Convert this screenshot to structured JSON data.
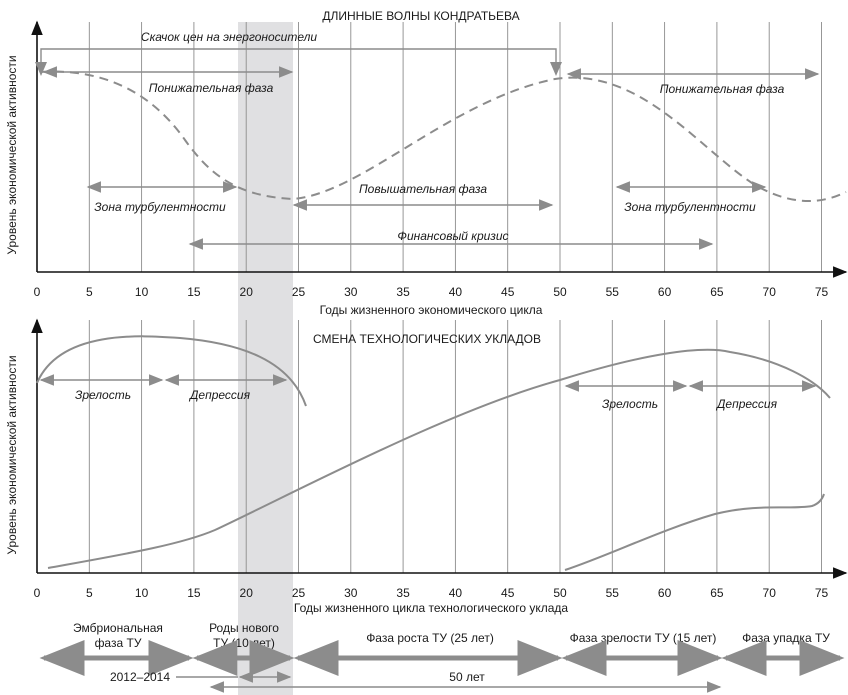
{
  "top_chart": {
    "title": "ДЛИННЫЕ ВОЛНЫ КОНДРАТЬЕВА",
    "ylabel": "Уровень экономической активности",
    "xlabel": "Годы жизненного экономического цикла",
    "ticks": [
      "0",
      "5",
      "10",
      "15",
      "20",
      "25",
      "30",
      "35",
      "40",
      "45",
      "50",
      "55",
      "60",
      "65",
      "70",
      "75"
    ],
    "labels": {
      "price_jump": "Скачок цен на энергоносители",
      "down_phase_1": "Понижательная фаза",
      "down_phase_2": "Понижательная фаза",
      "turbulence_1": "Зона турбулентности",
      "turbulence_2": "Зона турбулентности",
      "up_phase": "Повышательная фаза",
      "fin_crisis": "Финансовый кризис"
    }
  },
  "bottom_chart": {
    "title": "СМЕНА ТЕХНОЛОГИЧЕСКИХ УКЛАДОВ",
    "ylabel": "Уровень экономической активности",
    "xlabel": "Годы жизненного цикла технологического уклада",
    "ticks": [
      "0",
      "5",
      "10",
      "15",
      "20",
      "25",
      "30",
      "35",
      "40",
      "45",
      "50",
      "55",
      "60",
      "65",
      "70",
      "75"
    ],
    "labels": {
      "maturity_1": "Зрелость",
      "depression_1": "Депрессия",
      "maturity_2": "Зрелость",
      "depression_2": "Депрессия"
    }
  },
  "phases": {
    "embryo_1": "Эмбриональная",
    "embryo_2": "фаза ТУ",
    "birth_1": "Роды нового",
    "birth_2": "ТУ (10 лет)",
    "growth": "Фаза роста ТУ (25 лет)",
    "maturity": "Фаза зрелости ТУ (15 лет)",
    "decline": "Фаза упадка ТУ",
    "years_range": "2012–2014",
    "fifty_years": "50 лет"
  },
  "colors": {
    "arrow": "#8c8c8c",
    "curve": "#8c8c8c",
    "grid": "#8c8c8c",
    "shade": "#e0e0e2",
    "axis": "#111111"
  }
}
